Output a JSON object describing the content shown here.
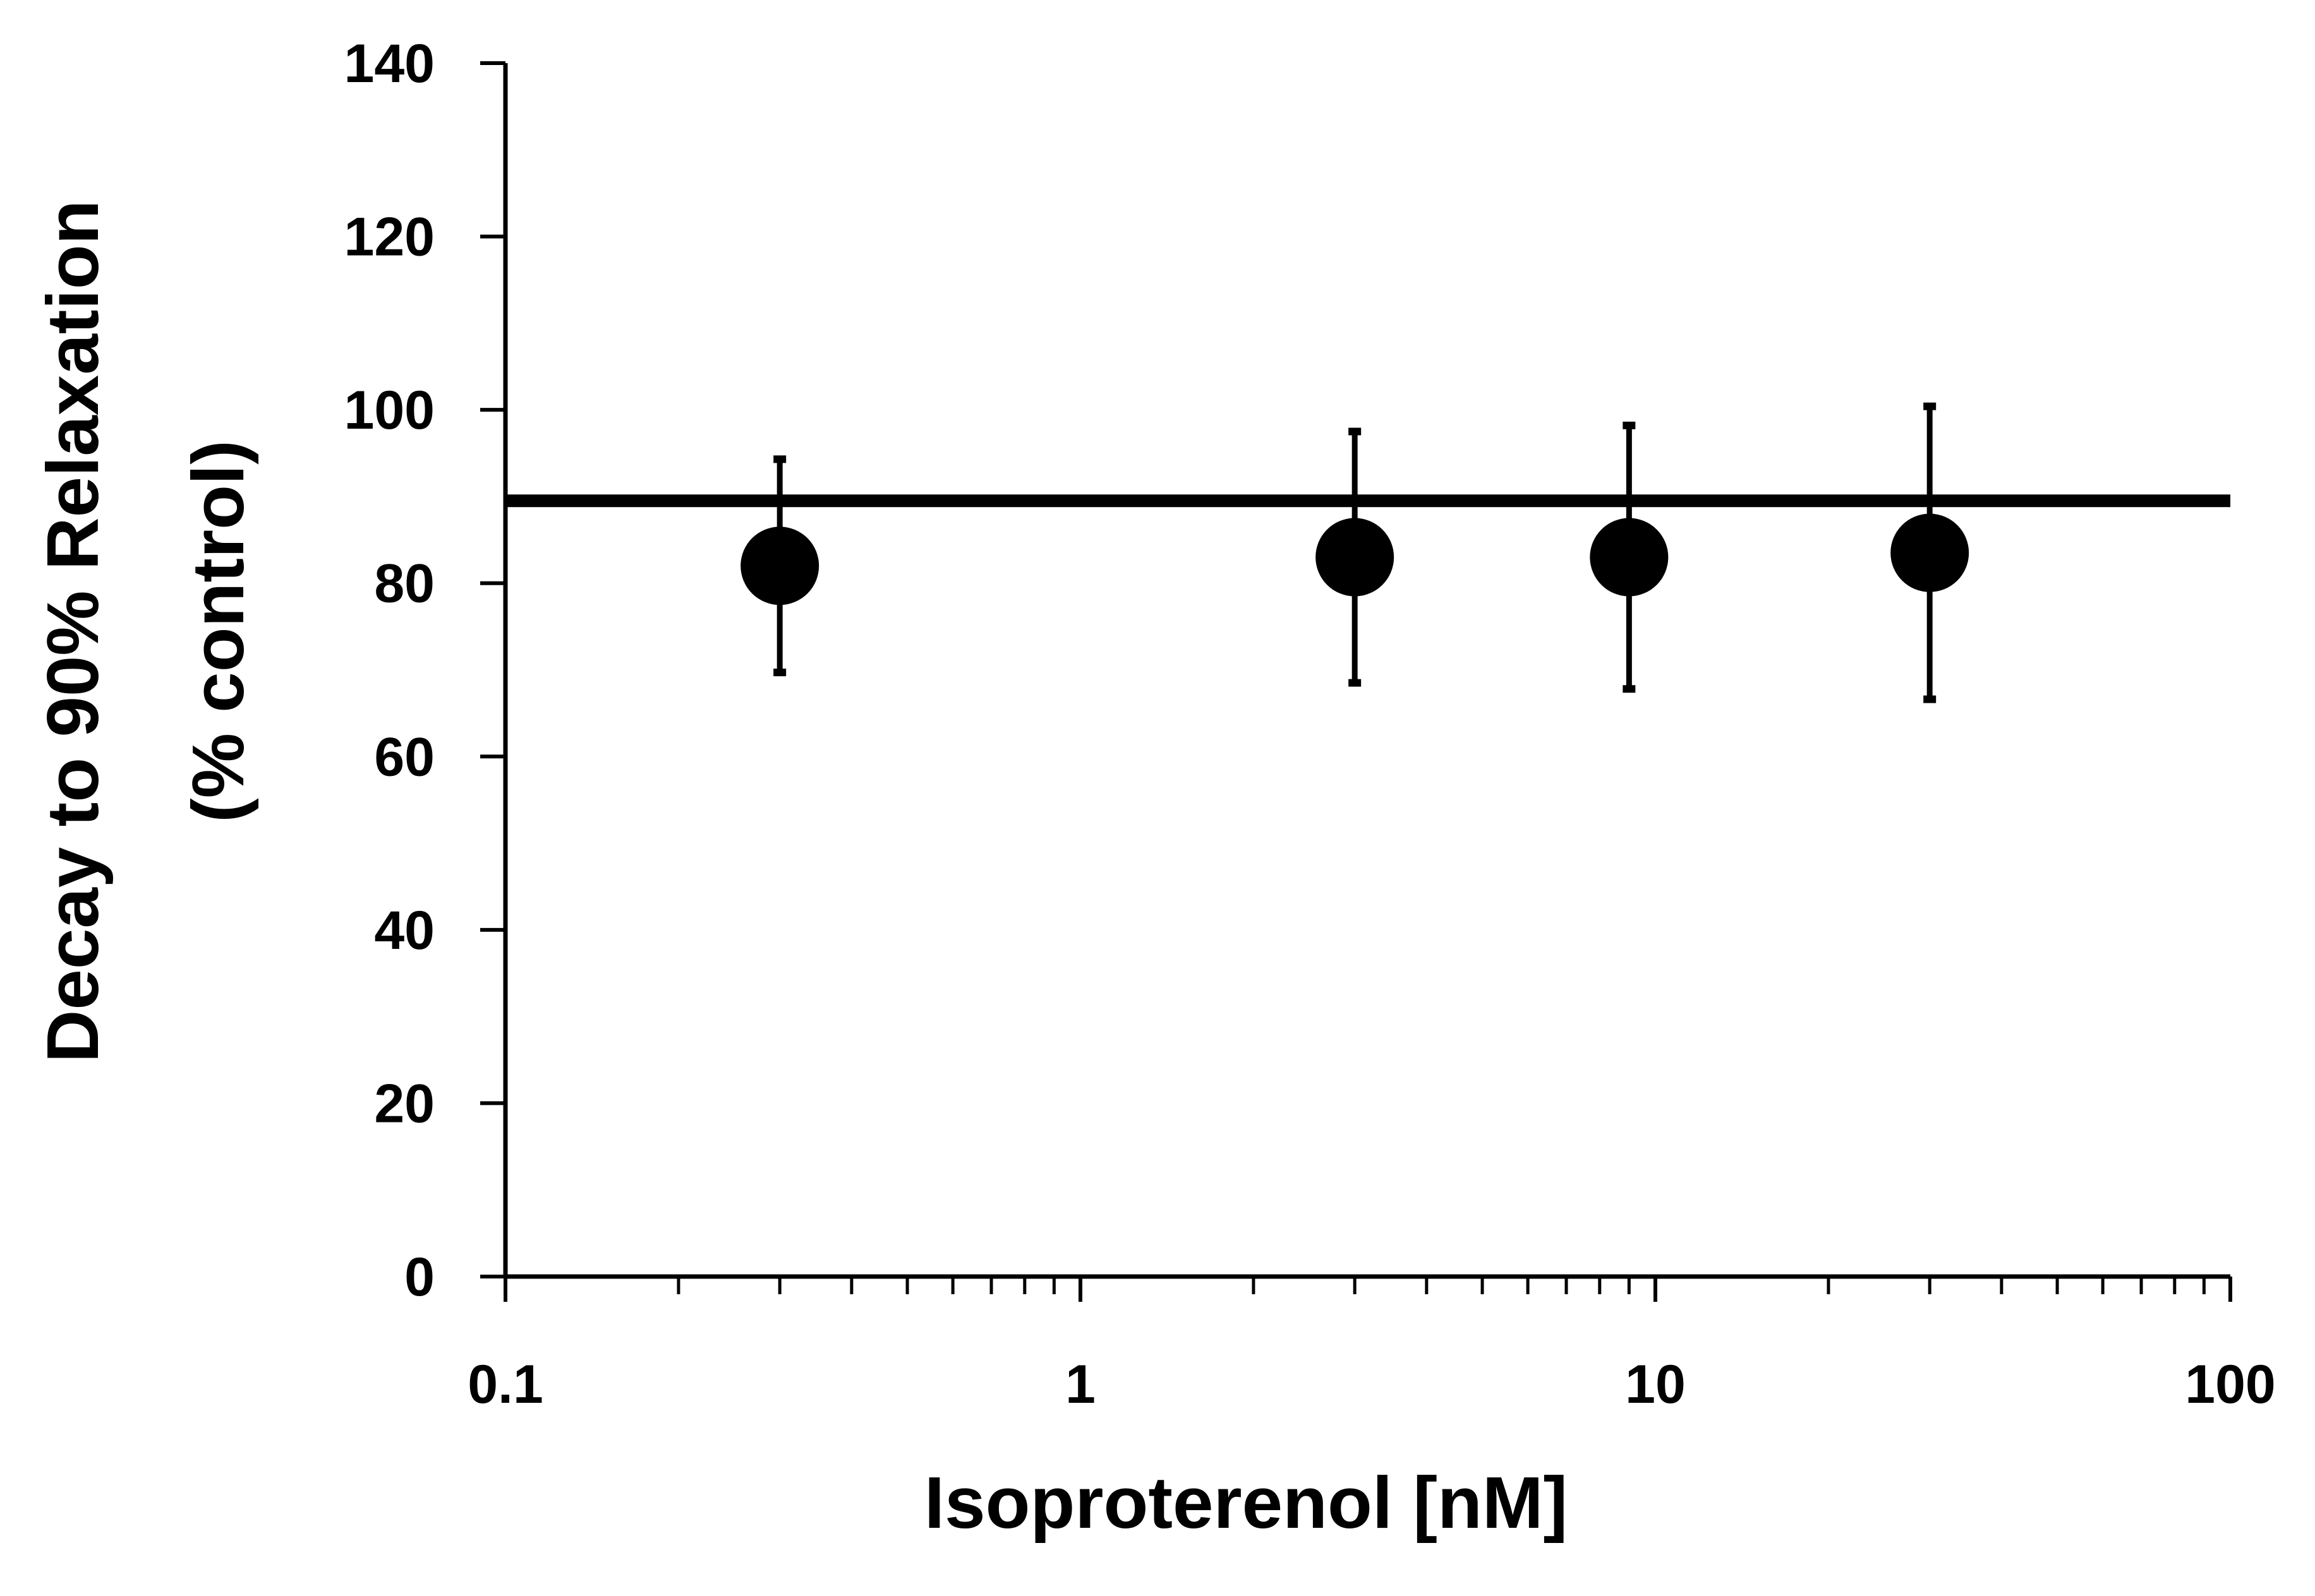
{
  "chart_data": {
    "type": "scatter",
    "title": "",
    "xlabel": "Isoproterenol [nM]",
    "ylabel_lines": [
      "Decay to 90% Relaxation",
      "(% control)"
    ],
    "x_scale": "log",
    "xlim": [
      0.1,
      100
    ],
    "ylim": [
      0,
      140
    ],
    "x_ticks": [
      0.1,
      1,
      10,
      100
    ],
    "x_tick_labels": [
      "0.1",
      "1",
      "10",
      "100"
    ],
    "y_ticks": [
      0,
      20,
      40,
      60,
      80,
      100,
      120,
      140
    ],
    "y_tick_labels": [
      "0",
      "20",
      "40",
      "60",
      "80",
      "100",
      "120",
      "140"
    ],
    "grid": false,
    "legend": "none",
    "reference_line": {
      "y": 89.5
    },
    "series": [
      {
        "points": [
          {
            "x": 0.3,
            "y": 82,
            "err_low": 69.7,
            "err_high": 94.3
          },
          {
            "x": 3,
            "y": 83,
            "err_low": 68.5,
            "err_high": 97.5
          },
          {
            "x": 9,
            "y": 83,
            "err_low": 67.8,
            "err_high": 98.2
          },
          {
            "x": 30,
            "y": 83.5,
            "err_low": 66.6,
            "err_high": 100.4
          }
        ]
      }
    ],
    "colors": {
      "marker": "#000000",
      "line": "#000000",
      "axis": "#000000"
    }
  }
}
